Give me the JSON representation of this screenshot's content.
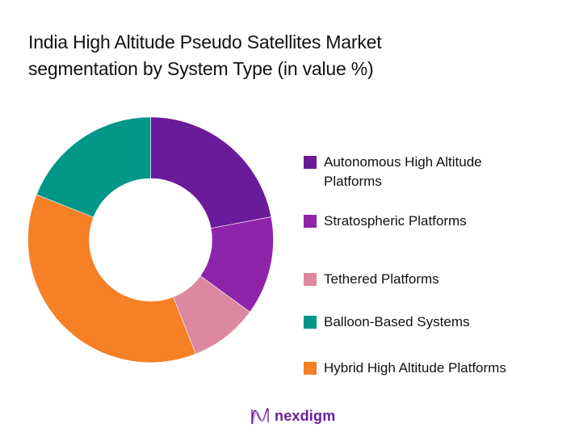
{
  "title": {
    "line1": "India High Altitude Pseudo Satellites Market",
    "line2": "segmentation by System Type (in value %)"
  },
  "legend": [
    {
      "label": "Autonomous High Altitude Platforms",
      "color": "#6A1B9A"
    },
    {
      "label": "Stratospheric Platforms",
      "color": "#8E24AA"
    },
    {
      "label": "Tethered Platforms",
      "color": "#DD88A0"
    },
    {
      "label": "Balloon-Based Systems",
      "color": "#009688"
    },
    {
      "label": "Hybrid High Altitude Platforms",
      "color": "#F58025"
    }
  ],
  "logo": {
    "text": "nexdigm",
    "color": "#6A1FA0"
  },
  "chart_data": {
    "type": "pie",
    "subtype": "donut",
    "title": "India High Altitude Pseudo Satellites Market segmentation by System Type (in value %)",
    "categories": [
      "Autonomous High Altitude Platforms",
      "Stratospheric Platforms",
      "Tethered Platforms",
      "Hybrid High Altitude Platforms",
      "Balloon-Based Systems"
    ],
    "values": [
      22,
      13,
      9,
      37,
      19
    ],
    "colors": [
      "#6A1B9A",
      "#8E24AA",
      "#DD88A0",
      "#F58025",
      "#009688"
    ],
    "start_angle_deg": 0,
    "direction": "clockwise",
    "legend_position": "right",
    "legend_order": [
      "Autonomous High Altitude Platforms",
      "Stratospheric Platforms",
      "Tethered Platforms",
      "Balloon-Based Systems",
      "Hybrid High Altitude Platforms"
    ],
    "data_labels": false
  }
}
